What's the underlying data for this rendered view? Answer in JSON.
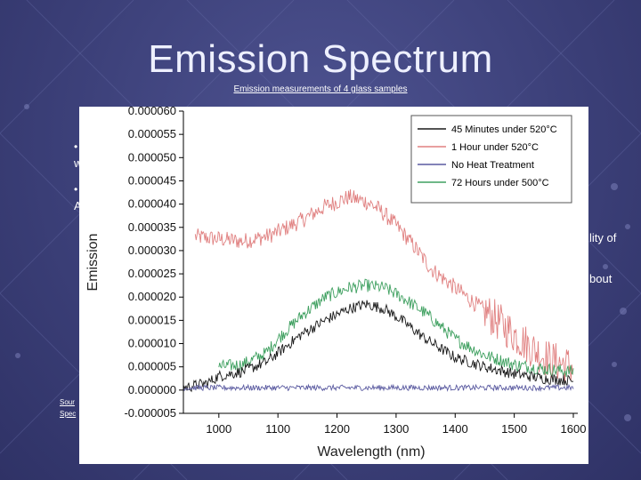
{
  "slide": {
    "title": "Emission Spectrum",
    "subtitle": "Emission measurements of 4 glass samples",
    "frag_w": "w",
    "frag_a": "A",
    "frag_lity": "lity of",
    "frag_bout": "bout",
    "source_1": "Sour",
    "source_2": "Spec"
  },
  "colors": {
    "s45": "#1a1a1a",
    "s1h": "#e08080",
    "snone": "#5a5aa0",
    "s72": "#3fa060"
  },
  "chart_data": {
    "type": "line",
    "title": "",
    "xlabel": "Wavelength (nm)",
    "ylabel": "Emission",
    "xlim": [
      940,
      1600
    ],
    "ylim": [
      -5e-06,
      6e-05
    ],
    "x_ticks": [
      1000,
      1100,
      1200,
      1300,
      1400,
      1500,
      1600
    ],
    "x_tick_labels": [
      "1000",
      "1100",
      "1200",
      "1300",
      "1400",
      "1500",
      "1600"
    ],
    "y_ticks": [
      -5e-06,
      0,
      5e-06,
      1e-05,
      1.5e-05,
      2e-05,
      2.5e-05,
      3e-05,
      3.5e-05,
      4e-05,
      4.5e-05,
      5e-05,
      5.5e-05,
      6e-05
    ],
    "y_tick_labels": [
      "-0.000005",
      "0.000000",
      "0.000005",
      "0.000010",
      "0.000015",
      "0.000020",
      "0.000025",
      "0.000030",
      "0.000035",
      "0.000040",
      "0.000045",
      "0.000050",
      "0.000055",
      "0.000060"
    ],
    "legend_position": "top-right",
    "series": [
      {
        "name": "45 Minutes under 520°C",
        "x": [
          940,
          980,
          1000,
          1040,
          1080,
          1100,
          1140,
          1180,
          1220,
          1250,
          1280,
          1310,
          1350,
          1400,
          1450,
          1500,
          1550,
          1600
        ],
        "y": [
          5e-07,
          1.5e-06,
          3e-06,
          4e-06,
          6e-06,
          8e-06,
          1.2e-05,
          1.5e-05,
          1.75e-05,
          1.85e-05,
          1.75e-05,
          1.5e-05,
          1.1e-05,
          7e-06,
          5e-06,
          3.5e-06,
          2.5e-06,
          2e-06
        ]
      },
      {
        "name": "1 Hour under 520°C",
        "x": [
          960,
          1000,
          1040,
          1080,
          1100,
          1140,
          1180,
          1220,
          1250,
          1270,
          1300,
          1330,
          1360,
          1400,
          1450,
          1480,
          1500,
          1530,
          1560,
          1600
        ],
        "y": [
          3.3e-05,
          3.25e-05,
          3.2e-05,
          3.3e-05,
          3.4e-05,
          3.65e-05,
          3.95e-05,
          4.15e-05,
          4.05e-05,
          3.9e-05,
          3.55e-05,
          3.1e-05,
          2.6e-05,
          2.2e-05,
          1.7e-05,
          1.4e-05,
          1.2e-05,
          9e-06,
          6.5e-06,
          5e-06
        ]
      },
      {
        "name": "No Heat Treatment",
        "x": [
          940,
          1000,
          1100,
          1200,
          1300,
          1400,
          1500,
          1600
        ],
        "y": [
          5e-07,
          5e-07,
          5e-07,
          5e-07,
          5e-07,
          5e-07,
          5e-07,
          5e-07
        ]
      },
      {
        "name": "72 Hours under 500°C",
        "x": [
          1000,
          1040,
          1080,
          1100,
          1140,
          1180,
          1220,
          1250,
          1280,
          1310,
          1350,
          1400,
          1450,
          1500,
          1550,
          1600
        ],
        "y": [
          5e-06,
          5.5e-06,
          8e-06,
          1.1e-05,
          1.6e-05,
          2e-05,
          2.2e-05,
          2.25e-05,
          2.2e-05,
          2e-05,
          1.65e-05,
          1.1e-05,
          7.5e-06,
          5.5e-06,
          4.5e-06,
          4e-06
        ]
      }
    ]
  }
}
